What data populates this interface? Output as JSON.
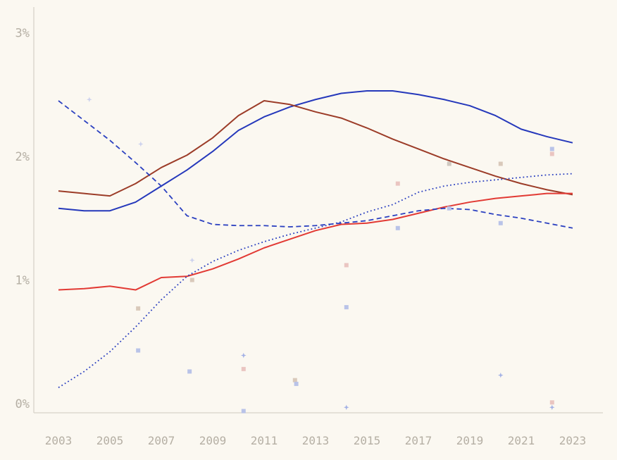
{
  "chart_data": {
    "type": "line",
    "title": "",
    "xlabel": "",
    "ylabel": "",
    "x_start": 2003,
    "x_end": 2023,
    "ylim": [
      -0.1,
      3.2
    ],
    "grid": false,
    "legend": "none",
    "background_color": "#fbf8f1",
    "axis_color": "#d8d3c9",
    "tick_color": "#b5afa4",
    "y_ticks": [
      {
        "label": "0%",
        "value": 0
      },
      {
        "label": "1%",
        "value": 1
      },
      {
        "label": "2%",
        "value": 2
      },
      {
        "label": "3%",
        "value": 3
      }
    ],
    "x_ticks": [
      {
        "label": "2003",
        "year": 2003
      },
      {
        "label": "2005",
        "year": 2005
      },
      {
        "label": "2007",
        "year": 2007
      },
      {
        "label": "2009",
        "year": 2009
      },
      {
        "label": "2011",
        "year": 2011
      },
      {
        "label": "2013",
        "year": 2013
      },
      {
        "label": "2015",
        "year": 2015
      },
      {
        "label": "2017",
        "year": 2017
      },
      {
        "label": "2019",
        "year": 2019
      },
      {
        "label": "2021",
        "year": 2021
      },
      {
        "label": "2023",
        "year": 2023
      }
    ],
    "series": [
      {
        "name": "blue-solid",
        "style": "solid",
        "color": "#2538bb",
        "width": 2,
        "values": [
          1.58,
          1.56,
          1.56,
          1.63,
          1.76,
          1.89,
          2.04,
          2.21,
          2.32,
          2.4,
          2.46,
          2.51,
          2.53,
          2.53,
          2.5,
          2.46,
          2.41,
          2.33,
          2.22,
          2.16,
          2.11
        ]
      },
      {
        "name": "dark-red-solid",
        "style": "solid",
        "color": "#9c3c28",
        "width": 2,
        "values": [
          1.72,
          1.7,
          1.68,
          1.78,
          1.91,
          2.01,
          2.15,
          2.33,
          2.45,
          2.42,
          2.36,
          2.31,
          2.23,
          2.14,
          2.06,
          1.98,
          1.91,
          1.84,
          1.78,
          1.73,
          1.69
        ]
      },
      {
        "name": "red-solid",
        "style": "solid",
        "color": "#e23a34",
        "width": 2,
        "values": [
          0.92,
          0.93,
          0.95,
          0.92,
          1.02,
          1.03,
          1.09,
          1.17,
          1.26,
          1.33,
          1.4,
          1.45,
          1.46,
          1.49,
          1.54,
          1.59,
          1.63,
          1.66,
          1.68,
          1.7,
          1.7
        ]
      },
      {
        "name": "blue-dashed",
        "style": "dashed",
        "color": "#2b40c0",
        "width": 1.8,
        "values": [
          2.45,
          2.29,
          2.13,
          1.95,
          1.76,
          1.52,
          1.45,
          1.44,
          1.44,
          1.43,
          1.44,
          1.46,
          1.48,
          1.52,
          1.56,
          1.58,
          1.57,
          1.53,
          1.5,
          1.46,
          1.42
        ]
      },
      {
        "name": "blue-dotted",
        "style": "dotted",
        "color": "#2b40c0",
        "width": 1.8,
        "values": [
          0.13,
          0.26,
          0.42,
          0.62,
          0.84,
          1.03,
          1.15,
          1.24,
          1.31,
          1.37,
          1.42,
          1.47,
          1.55,
          1.61,
          1.71,
          1.76,
          1.79,
          1.81,
          1.83,
          1.85,
          1.86
        ]
      }
    ],
    "marker_colors": {
      "blue": "#b9c3e8",
      "tan": "#d9c9ba",
      "pink": "#eac5c1",
      "gray": "#cfc8c0",
      "lavender": "#ccd1ed",
      "blue_star": "#a3b1e5"
    },
    "scatter": [
      {
        "year": 2004.2,
        "value": 2.46,
        "shape": "star",
        "color": "lavender"
      },
      {
        "year": 2006.2,
        "value": 2.1,
        "shape": "star",
        "color": "lavender"
      },
      {
        "year": 2006.1,
        "value": 0.77,
        "shape": "square",
        "color": "tan"
      },
      {
        "year": 2006.1,
        "value": 0.43,
        "shape": "square",
        "color": "blue"
      },
      {
        "year": 2008.2,
        "value": 1.16,
        "shape": "star",
        "color": "lavender"
      },
      {
        "year": 2008.2,
        "value": 1.0,
        "shape": "square",
        "color": "tan"
      },
      {
        "year": 2008.1,
        "value": 0.26,
        "shape": "square",
        "color": "blue"
      },
      {
        "year": 2010.2,
        "value": 0.39,
        "shape": "star",
        "color": "blue_star"
      },
      {
        "year": 2010.2,
        "value": 0.28,
        "shape": "square",
        "color": "pink"
      },
      {
        "year": 2010.2,
        "value": -0.06,
        "shape": "square",
        "color": "blue"
      },
      {
        "year": 2012.2,
        "value": 0.19,
        "shape": "square",
        "color": "tan"
      },
      {
        "year": 2012.25,
        "value": 0.16,
        "shape": "square",
        "color": "blue"
      },
      {
        "year": 2014.2,
        "value": 1.12,
        "shape": "square",
        "color": "pink"
      },
      {
        "year": 2014.2,
        "value": 0.78,
        "shape": "square",
        "color": "blue"
      },
      {
        "year": 2014.2,
        "value": -0.03,
        "shape": "star",
        "color": "blue_star"
      },
      {
        "year": 2016.2,
        "value": 1.78,
        "shape": "square",
        "color": "pink"
      },
      {
        "year": 2016.2,
        "value": 1.42,
        "shape": "square",
        "color": "blue"
      },
      {
        "year": 2018.2,
        "value": 1.94,
        "shape": "square",
        "color": "gray"
      },
      {
        "year": 2018.2,
        "value": 1.58,
        "shape": "square",
        "color": "blue"
      },
      {
        "year": 2020.2,
        "value": 1.94,
        "shape": "square",
        "color": "tan"
      },
      {
        "year": 2020.2,
        "value": 1.46,
        "shape": "square",
        "color": "blue"
      },
      {
        "year": 2020.2,
        "value": 0.23,
        "shape": "star",
        "color": "blue_star"
      },
      {
        "year": 2022.2,
        "value": 2.06,
        "shape": "square",
        "color": "blue"
      },
      {
        "year": 2022.2,
        "value": 2.02,
        "shape": "square",
        "color": "pink"
      },
      {
        "year": 2022.2,
        "value": 0.01,
        "shape": "square",
        "color": "pink"
      },
      {
        "year": 2022.2,
        "value": -0.03,
        "shape": "star",
        "color": "blue_star"
      }
    ]
  }
}
